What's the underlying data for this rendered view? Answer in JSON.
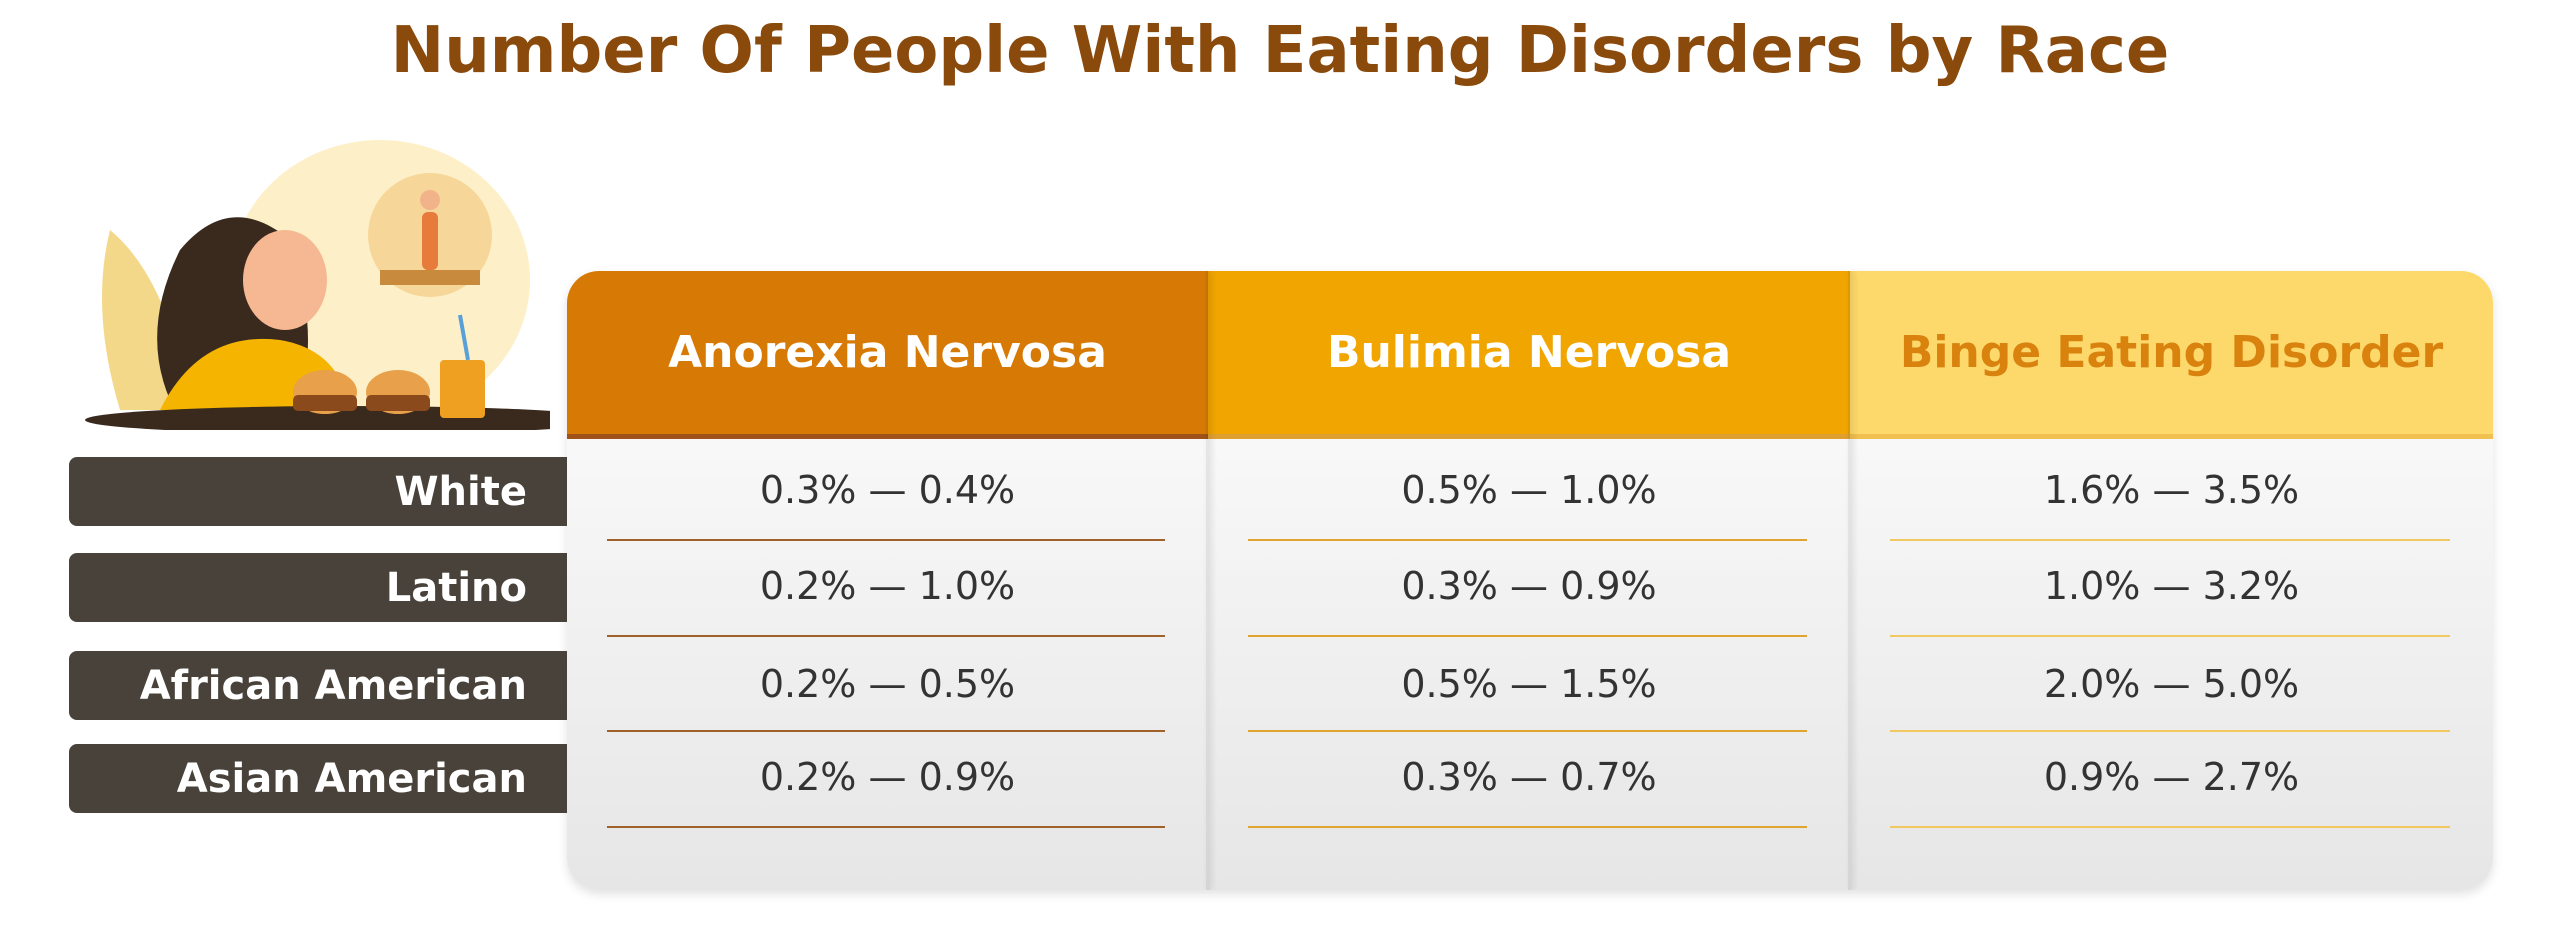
{
  "title": "Number Of People With Eating Disorders by Race",
  "table": {
    "columns": [
      "Anorexia Nervosa",
      "Bulimia Nervosa",
      "Binge Eating Disorder"
    ],
    "rows": [
      {
        "label": "White",
        "cells": [
          "0.3% — 0.4%",
          "0.5% — 1.0%",
          "1.6% — 3.5%"
        ]
      },
      {
        "label": "Latino",
        "cells": [
          "0.2% — 1.0%",
          "0.3% — 0.9%",
          "1.0% — 3.2%"
        ]
      },
      {
        "label": "African American",
        "cells": [
          "0.2% — 0.5%",
          "0.5% — 1.5%",
          "2.0% — 5.0%"
        ]
      },
      {
        "label": "Asian American",
        "cells": [
          "0.2% — 0.9%",
          "0.3% — 0.7%",
          "0.9% — 2.7%"
        ]
      }
    ]
  }
}
